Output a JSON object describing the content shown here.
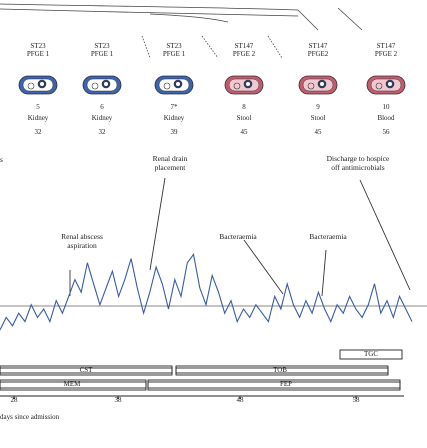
{
  "isolates": [
    {
      "st": "ST23",
      "pfge": "PFGE 1",
      "day": "5",
      "source": "Kidney",
      "count": "32",
      "type": "klebsiella"
    },
    {
      "st": "ST23",
      "pfge": "PFGE 1",
      "day": "6",
      "source": "Kidney",
      "count": "32",
      "type": "klebsiella"
    },
    {
      "st": "ST23",
      "pfge": "PFGE 1",
      "day": "7*",
      "source": "Kidney",
      "count": "39",
      "type": "klebsiella"
    },
    {
      "st": "ST147",
      "pfge": "PFGE 2",
      "day": "8",
      "source": "Stool",
      "count": "45",
      "type": "cpe"
    },
    {
      "st": "ST147",
      "pfge": "PFGE2",
      "day": "9",
      "source": "Stool",
      "count": "45",
      "type": "cpe"
    },
    {
      "st": "ST147",
      "pfge": "PFGE 2",
      "day": "10",
      "source": "Blood",
      "count": "56",
      "type": "cpe"
    }
  ],
  "annotations": [
    {
      "text": "Renal abscess\naspiration",
      "id": "renal-abscess-aspiration"
    },
    {
      "text": "Renal drain\nplacement",
      "id": "renal-drain-placement"
    },
    {
      "text": "Bacteraemia",
      "id": "bacteraemia-1"
    },
    {
      "text": "Bacteraemia",
      "id": "bacteraemia-2"
    },
    {
      "text": "Discharge to hospice\noff antimicrobials",
      "id": "discharge"
    }
  ],
  "left_cut_text": "s",
  "antibiotics": [
    {
      "label": "TGC"
    },
    {
      "label": "CST"
    },
    {
      "label": "TOB"
    },
    {
      "label": "MEM"
    },
    {
      "label": "FEP"
    }
  ],
  "x_ticks": [
    "28",
    "38",
    "48",
    "58"
  ],
  "x_axis_label": "days since admission",
  "temperature_series": [
    0.0,
    0.15,
    0.05,
    0.2,
    0.1,
    0.3,
    0.15,
    0.25,
    0.1,
    0.35,
    0.2,
    0.4,
    0.6,
    0.45,
    0.8,
    0.55,
    0.3,
    0.5,
    0.7,
    0.4,
    0.6,
    0.85,
    0.5,
    0.2,
    0.45,
    0.75,
    0.55,
    0.25,
    0.6,
    0.4,
    0.8,
    0.9,
    0.5,
    0.3,
    0.65,
    0.45,
    0.2,
    0.35,
    0.1,
    0.25,
    0.15,
    0.3,
    0.2,
    0.1,
    0.4,
    0.25,
    0.55,
    0.3,
    0.15,
    0.35,
    0.2,
    0.45,
    0.25,
    0.1,
    0.3,
    0.2,
    0.4,
    0.25,
    0.15,
    0.3,
    0.55,
    0.2,
    0.35,
    0.15,
    0.4,
    0.25,
    0.1
  ]
}
